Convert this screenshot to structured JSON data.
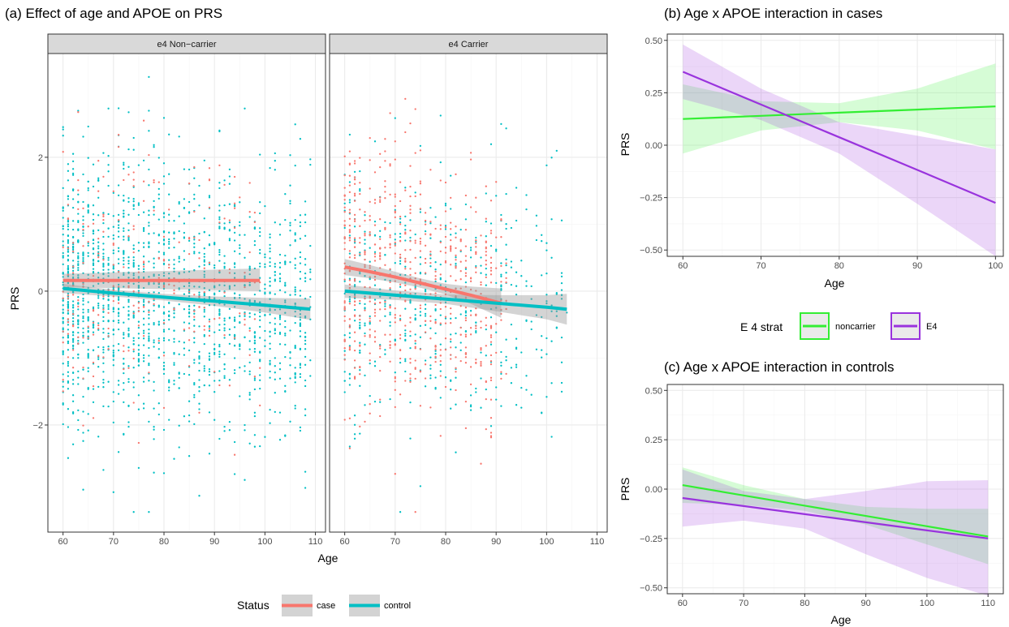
{
  "colors": {
    "case": "#F8766D",
    "control": "#00BFC4",
    "noncarrier": "#33EE33",
    "e4": "#9933DD",
    "ribbon": "#999999",
    "strip_bg": "#d9d9d9",
    "grid_major": "#ebebeb",
    "grid_minor": "#f5f5f5"
  },
  "legend_status": {
    "title": "Status",
    "items": [
      "case",
      "control"
    ]
  },
  "legend_strat": {
    "title": "E 4 strat",
    "items": [
      "noncarrier",
      "E4"
    ]
  },
  "chart_data": [
    {
      "type": "scatter",
      "id": "a",
      "title": "(a) Effect of age and APOE on PRS",
      "xlabel": "Age",
      "ylabel": "PRS",
      "xlim": [
        57,
        112
      ],
      "ylim": [
        -3.6,
        3.55
      ],
      "xticks": [
        60,
        70,
        80,
        90,
        100,
        110
      ],
      "yticks": [
        -2,
        0,
        2
      ],
      "panels": [
        {
          "strip": "e4 Non−carrier",
          "fits": [
            {
              "name": "case",
              "x": [
                60,
                99
              ],
              "y": [
                0.16,
                0.16
              ],
              "lo": [
                0.06,
                0.0
              ],
              "hi": [
                0.26,
                0.34
              ]
            },
            {
              "name": "control",
              "x": [
                60,
                70,
                80,
                90,
                100,
                109
              ],
              "y": [
                0.04,
                -0.03,
                -0.09,
                -0.15,
                -0.21,
                -0.27
              ],
              "lo": [
                -0.03,
                -0.08,
                -0.14,
                -0.22,
                -0.32,
                -0.43
              ],
              "hi": [
                0.11,
                0.02,
                -0.04,
                -0.08,
                -0.1,
                -0.11
              ]
            }
          ]
        },
        {
          "strip": "e4 Carrier",
          "fits": [
            {
              "name": "case",
              "x": [
                60,
                65,
                70,
                75,
                80,
                85,
                91
              ],
              "y": [
                0.36,
                0.29,
                0.21,
                0.12,
                0.03,
                -0.06,
                -0.18
              ],
              "lo": [
                0.24,
                0.19,
                0.13,
                0.05,
                -0.05,
                -0.19,
                -0.4
              ],
              "hi": [
                0.48,
                0.39,
                0.29,
                0.19,
                0.11,
                0.07,
                0.04
              ]
            },
            {
              "name": "control",
              "x": [
                60,
                70,
                80,
                90,
                100,
                104
              ],
              "y": [
                0.0,
                -0.06,
                -0.12,
                -0.18,
                -0.24,
                -0.27
              ],
              "lo": [
                -0.1,
                -0.13,
                -0.19,
                -0.3,
                -0.42,
                -0.5
              ],
              "hi": [
                0.1,
                0.01,
                -0.05,
                -0.06,
                -0.06,
                -0.04
              ]
            }
          ]
        }
      ]
    },
    {
      "type": "line",
      "id": "b",
      "title": "(b) Age x APOE interaction in cases",
      "xlabel": "Age",
      "ylabel": "PRS",
      "xlim": [
        58,
        101
      ],
      "ylim": [
        -0.53,
        0.53
      ],
      "xticks": [
        60,
        70,
        80,
        90,
        100
      ],
      "yticks": [
        -0.5,
        -0.25,
        0.0,
        0.25,
        0.5
      ],
      "ytick_labels": [
        "−0.50",
        "−0.25",
        "0.00",
        "0.25",
        "0.50"
      ],
      "series": [
        {
          "name": "noncarrier",
          "x": [
            60,
            70,
            80,
            90,
            100
          ],
          "y": [
            0.125,
            0.14,
            0.155,
            0.17,
            0.185
          ],
          "lo": [
            -0.04,
            0.07,
            0.11,
            0.07,
            -0.02
          ],
          "hi": [
            0.29,
            0.21,
            0.2,
            0.27,
            0.39
          ]
        },
        {
          "name": "E4",
          "x": [
            60,
            70,
            80,
            90,
            100
          ],
          "y": [
            0.35,
            0.194,
            0.038,
            -0.118,
            -0.275
          ],
          "lo": [
            0.22,
            0.12,
            -0.04,
            -0.28,
            -0.53
          ],
          "hi": [
            0.48,
            0.27,
            0.11,
            0.045,
            -0.02
          ]
        }
      ]
    },
    {
      "type": "line",
      "id": "c",
      "title": "(c) Age x APOE interaction in controls",
      "xlabel": "Age",
      "ylabel": "PRS",
      "xlim": [
        57.5,
        112.5
      ],
      "ylim": [
        -0.53,
        0.53
      ],
      "xticks": [
        60,
        70,
        80,
        90,
        100,
        110
      ],
      "yticks": [
        -0.5,
        -0.25,
        0.0,
        0.25,
        0.5
      ],
      "ytick_labels": [
        "−0.50",
        "−0.25",
        "0.00",
        "0.25",
        "0.50"
      ],
      "series": [
        {
          "name": "noncarrier",
          "x": [
            60,
            70,
            80,
            90,
            100,
            110
          ],
          "y": [
            0.02,
            -0.032,
            -0.084,
            -0.136,
            -0.188,
            -0.24
          ],
          "lo": [
            -0.07,
            -0.08,
            -0.11,
            -0.18,
            -0.28,
            -0.38
          ],
          "hi": [
            0.11,
            0.02,
            -0.05,
            -0.09,
            -0.1,
            -0.1
          ]
        },
        {
          "name": "E4",
          "x": [
            60,
            70,
            80,
            90,
            100,
            110
          ],
          "y": [
            -0.045,
            -0.086,
            -0.127,
            -0.168,
            -0.209,
            -0.25
          ],
          "lo": [
            -0.19,
            -0.16,
            -0.2,
            -0.33,
            -0.45,
            -0.54
          ],
          "hi": [
            0.1,
            -0.01,
            -0.05,
            -0.01,
            0.04,
            0.045
          ]
        }
      ]
    }
  ]
}
